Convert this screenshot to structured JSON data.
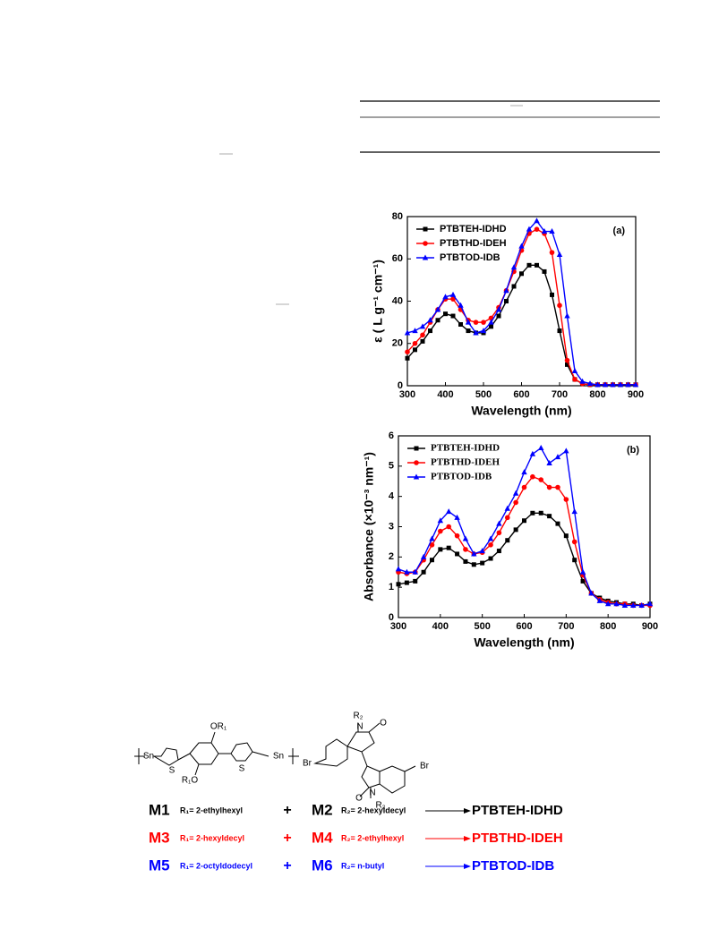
{
  "chart_data": [
    {
      "type": "line",
      "annotation": "(a)",
      "x_label": "Wavelength (nm)",
      "y_label": "ε ( L g⁻¹ cm⁻¹)",
      "x": [
        300,
        320,
        340,
        360,
        380,
        400,
        420,
        440,
        460,
        480,
        500,
        520,
        540,
        560,
        580,
        600,
        620,
        640,
        660,
        680,
        700,
        720,
        740,
        760,
        780,
        800,
        820,
        840,
        860,
        880,
        900
      ],
      "series": [
        {
          "name": "PTBTEH-IDHD",
          "color": "#000000",
          "marker": "square",
          "values": [
            13,
            17,
            21,
            26,
            31,
            34,
            33,
            29,
            26,
            25,
            25,
            28,
            33,
            40,
            47,
            53,
            57,
            57,
            54,
            43,
            26,
            10,
            3,
            1,
            0.5,
            0.5,
            0.5,
            0.5,
            0.5,
            0.5,
            0.5
          ]
        },
        {
          "name": "PTBTHD-IDEH",
          "color": "#ff0000",
          "marker": "circle",
          "values": [
            16,
            20,
            24,
            30,
            36,
            41,
            41,
            36,
            31,
            30,
            30,
            32,
            37,
            45,
            54,
            64,
            72,
            74,
            72,
            63,
            38,
            12,
            3,
            1,
            0.5,
            0.5,
            0.5,
            0.5,
            0.5,
            0.5,
            0.5
          ]
        },
        {
          "name": "PTBTOD-IDB",
          "color": "#0000ff",
          "marker": "triangle",
          "values": [
            25,
            26,
            28,
            31,
            36,
            42,
            43,
            38,
            30,
            25,
            26,
            30,
            36,
            45,
            56,
            66,
            74,
            78,
            73,
            73,
            62,
            33,
            7,
            2,
            1,
            0.5,
            0.5,
            0.5,
            0.5,
            0.5,
            0.5
          ]
        }
      ],
      "xlim": [
        300,
        900
      ],
      "xticks": [
        300,
        400,
        500,
        600,
        700,
        800,
        900
      ],
      "ylim": [
        0,
        80
      ],
      "yticks": [
        0,
        20,
        40,
        60,
        80
      ],
      "legend": "upper left"
    },
    {
      "type": "line",
      "annotation": "(b)",
      "x_label": "Wavelength (nm)",
      "y_label": "Absorbance (×10⁻³ nm⁻¹)",
      "x": [
        300,
        320,
        340,
        360,
        380,
        400,
        420,
        440,
        460,
        480,
        500,
        520,
        540,
        560,
        580,
        600,
        620,
        640,
        660,
        680,
        700,
        720,
        740,
        760,
        780,
        800,
        820,
        840,
        860,
        880,
        900
      ],
      "series": [
        {
          "name": "PTBTEH-IDHD",
          "color": "#000000",
          "marker": "square",
          "values": [
            1.1,
            1.15,
            1.2,
            1.5,
            1.9,
            2.25,
            2.3,
            2.1,
            1.85,
            1.75,
            1.8,
            1.95,
            2.2,
            2.55,
            2.9,
            3.2,
            3.45,
            3.45,
            3.35,
            3.1,
            2.7,
            1.9,
            1.2,
            0.8,
            0.65,
            0.55,
            0.5,
            0.45,
            0.45,
            0.4,
            0.45
          ]
        },
        {
          "name": "PTBTHD-IDEH",
          "color": "#ff0000",
          "marker": "circle",
          "values": [
            1.5,
            1.45,
            1.5,
            1.9,
            2.4,
            2.85,
            3.0,
            2.7,
            2.25,
            2.1,
            2.15,
            2.4,
            2.8,
            3.3,
            3.8,
            4.3,
            4.65,
            4.55,
            4.3,
            4.3,
            3.9,
            2.5,
            1.4,
            0.8,
            0.6,
            0.5,
            0.45,
            0.45,
            0.4,
            0.4,
            0.4
          ]
        },
        {
          "name": "PTBTOD-IDB",
          "color": "#0000ff",
          "marker": "triangle",
          "values": [
            1.6,
            1.5,
            1.5,
            2.0,
            2.6,
            3.2,
            3.5,
            3.3,
            2.6,
            2.1,
            2.2,
            2.6,
            3.1,
            3.6,
            4.1,
            4.8,
            5.4,
            5.6,
            5.1,
            5.3,
            5.5,
            3.5,
            1.5,
            0.8,
            0.55,
            0.45,
            0.45,
            0.4,
            0.4,
            0.4,
            0.45
          ]
        }
      ],
      "xlim": [
        300,
        900
      ],
      "xticks": [
        300,
        400,
        500,
        600,
        700,
        800,
        900
      ],
      "ylim": [
        0,
        6
      ],
      "yticks": [
        0,
        1,
        2,
        3,
        4,
        5,
        6
      ],
      "legend": "upper left"
    }
  ],
  "scheme": {
    "atoms": [
      "Sn",
      "S",
      "OR₁",
      "R₁O",
      "S",
      "Sn",
      "R₂",
      "O",
      "Br",
      "N",
      "N",
      "O",
      "R₂",
      "Br"
    ],
    "rows": [
      {
        "monomer1": "M1",
        "r1": "R₁= 2-ethylhexyl",
        "plus": "+",
        "monomer2": "M2",
        "r2": "R₂= 2-hexyldecyl",
        "polymer": "PTBTEH-IDHD",
        "color": "#000000"
      },
      {
        "monomer1": "M3",
        "r1": "R₁= 2-hexyldecyl",
        "plus": "+",
        "monomer2": "M4",
        "r2": "R₂= 2-ethylhexyl",
        "polymer": "PTBTHD-IDEH",
        "color": "#ff0000"
      },
      {
        "monomer1": "M5",
        "r1": "R₁= 2-octyldodecyl",
        "plus": "+",
        "monomer2": "M6",
        "r2": "R₂= n-butyl",
        "polymer": "PTBTOD-IDB",
        "color": "#0000ff"
      }
    ]
  }
}
